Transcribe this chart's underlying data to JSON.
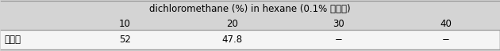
{
  "title": "dichloromethane (%) in hexane (0.1% 개미산)",
  "col_headers": [
    "10",
    "20",
    "30",
    "40"
  ],
  "row_label": "회수율",
  "values": [
    "52",
    "47.8",
    "−",
    "−"
  ],
  "bg_gray": "#d4d4d4",
  "bg_white": "#f5f5f5",
  "border_color": "#999999",
  "font_size": 8.5,
  "title_font_size": 8.5
}
